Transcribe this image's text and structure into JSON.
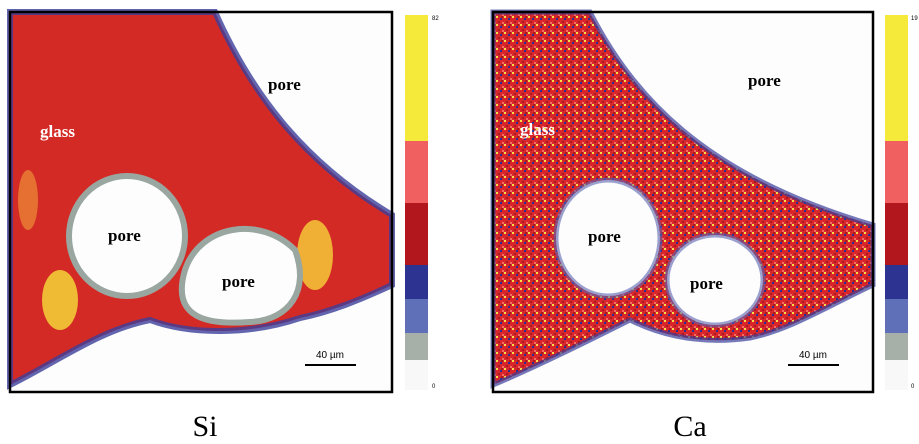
{
  "panels": [
    {
      "label": "Si",
      "scale_max": "82",
      "scale_min": "0",
      "scale_bar": "40 µm",
      "annotations": [
        "glass",
        "pore",
        "pore",
        "pore"
      ]
    },
    {
      "label": "Ca",
      "scale_max": "19",
      "scale_min": "0",
      "scale_bar": "40 µm",
      "annotations": [
        "glass",
        "pore",
        "pore",
        "pore"
      ]
    }
  ]
}
